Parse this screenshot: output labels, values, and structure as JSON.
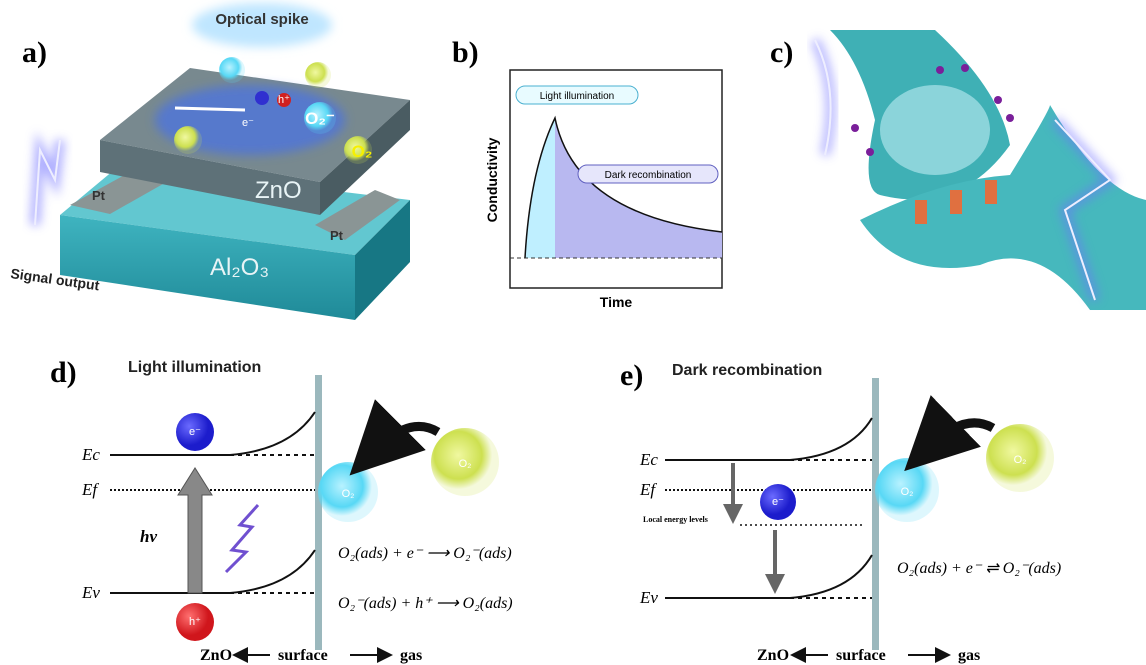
{
  "panel_a": {
    "label": "a)",
    "title": "Optical spike",
    "material": "ZnO",
    "electrode_left": "Pt",
    "electrode_right": "Pt",
    "substrate": "Al₂O₃",
    "output": "Signal output",
    "electron": "e⁻",
    "hole": "h⁺",
    "oxygen_ion": "O₂⁻",
    "oxygen": "O₂"
  },
  "panel_b": {
    "label": "b)",
    "annotation_1": "Light illumination",
    "annotation_2": "Dark recombination",
    "y_label": "Conductivity",
    "x_label": "Time"
  },
  "panel_c": {
    "label": "c)"
  },
  "panel_d": {
    "label": "d)",
    "title": "Light illumination",
    "levels": [
      "Ec",
      "Ef",
      "Ev"
    ],
    "electron": "e⁻",
    "hole": "h⁺",
    "photon": "hν",
    "oxygen_adsorbed": "O₂",
    "oxygen_gas": "O₂",
    "equations": [
      "O₂(ads) + e⁻ ⟶ O₂⁻(ads)",
      "O₂⁻(ads) + h⁺ ⟶ O₂(ads)"
    ],
    "footer": [
      "ZnO",
      "surface",
      "gas"
    ]
  },
  "panel_e": {
    "label": "e)",
    "title": "Dark recombination",
    "levels": [
      "Ec",
      "Ef",
      "Ev"
    ],
    "local_levels": "Local energy levels",
    "electron": "e⁻",
    "oxygen_adsorbed": "O₂",
    "oxygen_gas": "O₂",
    "equation": "O₂(ads) + e⁻ ⇌ O₂⁻(ads)",
    "footer": [
      "ZnO",
      "surface",
      "gas"
    ]
  }
}
